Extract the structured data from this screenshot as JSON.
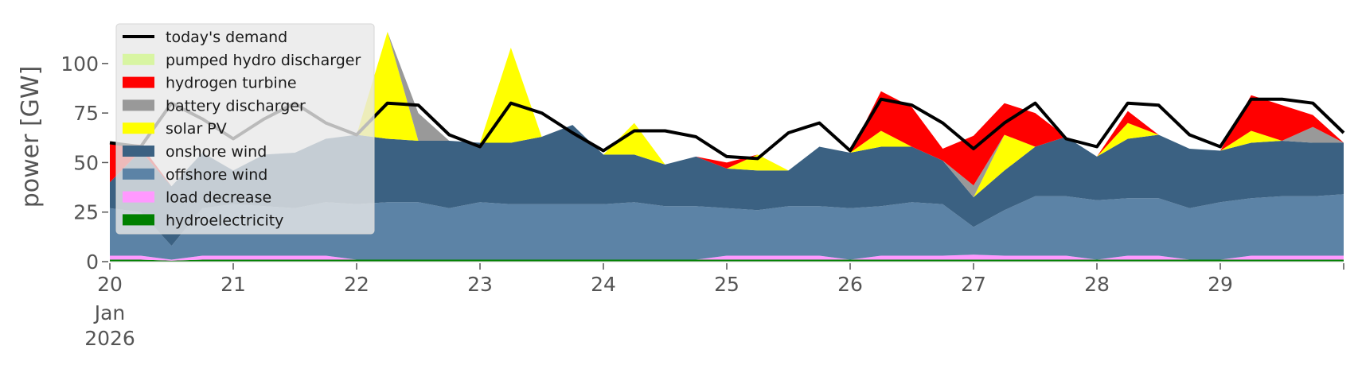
{
  "chart_data": {
    "type": "area",
    "xlabel": "",
    "ylabel": "power [GW]",
    "ylim": [
      0,
      120
    ],
    "xlim": [
      0,
      240
    ],
    "x_unit": "hours since 2026-01-20 00:00",
    "y_ticks": [
      "0",
      "25",
      "50",
      "75",
      "100"
    ],
    "y_tick_values": [
      0,
      25,
      50,
      75,
      100
    ],
    "x_ticks": [
      {
        "value": 0,
        "label": "20"
      },
      {
        "value": 24,
        "label": "21"
      },
      {
        "value": 48,
        "label": "22"
      },
      {
        "value": 72,
        "label": "23"
      },
      {
        "value": 96,
        "label": "24"
      },
      {
        "value": 120,
        "label": "25"
      },
      {
        "value": 144,
        "label": "26"
      },
      {
        "value": 168,
        "label": "27"
      },
      {
        "value": 192,
        "label": "28"
      },
      {
        "value": 216,
        "label": "29"
      }
    ],
    "x_sublabels": [
      "Jan",
      "2026"
    ],
    "grid": false,
    "legend_position": "top-left",
    "legend": [
      {
        "name": "today's demand",
        "color": "#000000",
        "kind": "line"
      },
      {
        "name": "pumped hydro discharger",
        "color": "#d8f5a2",
        "kind": "patch"
      },
      {
        "name": "hydrogen turbine",
        "color": "#ff0000",
        "kind": "patch"
      },
      {
        "name": "battery discharger",
        "color": "#999999",
        "kind": "patch"
      },
      {
        "name": "solar PV",
        "color": "#ffff00",
        "kind": "patch"
      },
      {
        "name": "onshore wind",
        "color": "#3b6182",
        "kind": "patch"
      },
      {
        "name": "offshore wind",
        "color": "#5c83a6",
        "kind": "patch"
      },
      {
        "name": "load decrease",
        "color": "#ff99ff",
        "kind": "patch"
      },
      {
        "name": "hydroelectricity",
        "color": "#008000",
        "kind": "patch"
      }
    ],
    "stack_order": [
      "hydroelectricity",
      "load decrease",
      "offshore wind",
      "onshore wind",
      "solar PV",
      "battery discharger",
      "hydrogen turbine"
    ],
    "series_colors": {
      "hydroelectricity": "#008000",
      "load decrease": "#ff99ff",
      "offshore wind": "#5c83a6",
      "onshore wind": "#3b6182",
      "solar PV": "#ffff00",
      "battery discharger": "#999999",
      "hydrogen turbine": "#ff0000"
    },
    "x": [
      0,
      6,
      12,
      18,
      24,
      30,
      36,
      42,
      48,
      54,
      60,
      66,
      72,
      78,
      84,
      90,
      96,
      102,
      108,
      114,
      120,
      126,
      132,
      138,
      144,
      150,
      156,
      162,
      168,
      174,
      180,
      186,
      192,
      198,
      204,
      210,
      216,
      222,
      228,
      234,
      240
    ],
    "series": [
      {
        "name": "hydroelectricity",
        "values": [
          1.0,
          1.0,
          0.5,
          1.0,
          1.0,
          1.0,
          1.0,
          1.0,
          1.0,
          1.0,
          1.0,
          1.0,
          1.0,
          1.0,
          1.0,
          1.0,
          1.0,
          1.0,
          1.0,
          1.0,
          1.0,
          1.0,
          1.0,
          1.0,
          1.0,
          1.0,
          1.0,
          1.0,
          1.0,
          1.0,
          1.0,
          1.0,
          1.0,
          1.0,
          1.0,
          1.0,
          1.0,
          1.0,
          1.0,
          1.0,
          1.0
        ]
      },
      {
        "name": "load decrease",
        "values": [
          2.0,
          2.0,
          0.5,
          2.0,
          2.0,
          2.0,
          2.0,
          2.0,
          0.0,
          0.0,
          0.0,
          0.0,
          0.0,
          0.0,
          0.0,
          0.0,
          0.0,
          0.0,
          0.0,
          0.0,
          2.0,
          2.0,
          2.0,
          2.0,
          0.0,
          2.0,
          2.0,
          2.0,
          2.5,
          2.0,
          2.0,
          2.0,
          0.0,
          2.0,
          2.0,
          0.0,
          0.0,
          2.0,
          2.0,
          2.0,
          2.0
        ]
      },
      {
        "name": "offshore wind",
        "values": [
          24,
          22,
          7,
          24,
          26,
          25,
          24,
          27,
          28,
          29,
          29,
          26,
          29,
          28,
          28,
          28,
          28,
          29,
          27,
          27,
          24,
          23,
          25,
          25,
          26,
          25,
          27,
          26,
          14,
          23,
          30,
          30,
          30,
          29,
          29,
          26,
          29,
          29,
          30,
          30,
          31
        ]
      },
      {
        "name": "onshore wind",
        "values": [
          13,
          31,
          30,
          28,
          17,
          26,
          28,
          32,
          35,
          32,
          31,
          34,
          30,
          31,
          34,
          40,
          25,
          24,
          21,
          25,
          20,
          20,
          18,
          30,
          28,
          30,
          28,
          22,
          15,
          20,
          25,
          30,
          22,
          30,
          32,
          30,
          26,
          28,
          28,
          27,
          26
        ]
      },
      {
        "name": "solar PV",
        "values": [
          0,
          0,
          0,
          0,
          0,
          0,
          0,
          0,
          0,
          54,
          0,
          0,
          0,
          48,
          0,
          0,
          0,
          16,
          0,
          0,
          0,
          8,
          0,
          0,
          0,
          8,
          0,
          0,
          0,
          18,
          0,
          0,
          0,
          8,
          0,
          0,
          0,
          6,
          0,
          0,
          0
        ]
      },
      {
        "name": "battery discharger",
        "values": [
          0,
          0,
          0,
          0,
          0,
          0,
          0,
          0,
          0,
          0,
          14,
          0,
          0,
          0,
          0,
          0,
          0,
          0,
          0,
          0,
          0,
          0,
          0,
          0,
          0,
          0,
          0,
          0,
          6,
          0,
          0,
          0,
          0,
          0,
          0,
          0,
          0,
          0,
          0,
          8,
          0
        ]
      },
      {
        "name": "hydrogen turbine",
        "values": [
          20,
          3,
          0,
          0,
          0,
          0,
          0,
          0,
          0,
          0,
          0,
          0,
          0,
          0,
          0,
          0,
          0,
          0,
          0,
          0,
          3,
          0,
          0,
          0,
          0,
          20,
          20,
          6,
          25,
          16,
          17,
          0,
          0,
          6,
          0,
          0,
          0,
          18,
          18,
          6,
          0
        ]
      },
      {
        "name": "pumped hydro discharger",
        "values": [
          0,
          0,
          0,
          0,
          0,
          0,
          0,
          0,
          0,
          0,
          0,
          0,
          0,
          0,
          0,
          0,
          0,
          0,
          0,
          0,
          0,
          0,
          0,
          0,
          0,
          0,
          0,
          0,
          0,
          0,
          0,
          0,
          0,
          0,
          0,
          0,
          0,
          0,
          0,
          0,
          0
        ]
      }
    ],
    "demand": {
      "name": "today's demand",
      "values": [
        60,
        58,
        80,
        72,
        62,
        72,
        80,
        70,
        64,
        80,
        79,
        64,
        58,
        80,
        75,
        65,
        56,
        66,
        66,
        63,
        53,
        52,
        65,
        70,
        56,
        82,
        79,
        70,
        57,
        70,
        80,
        62,
        58,
        80,
        79,
        64,
        58,
        82,
        82,
        80,
        65
      ]
    }
  }
}
